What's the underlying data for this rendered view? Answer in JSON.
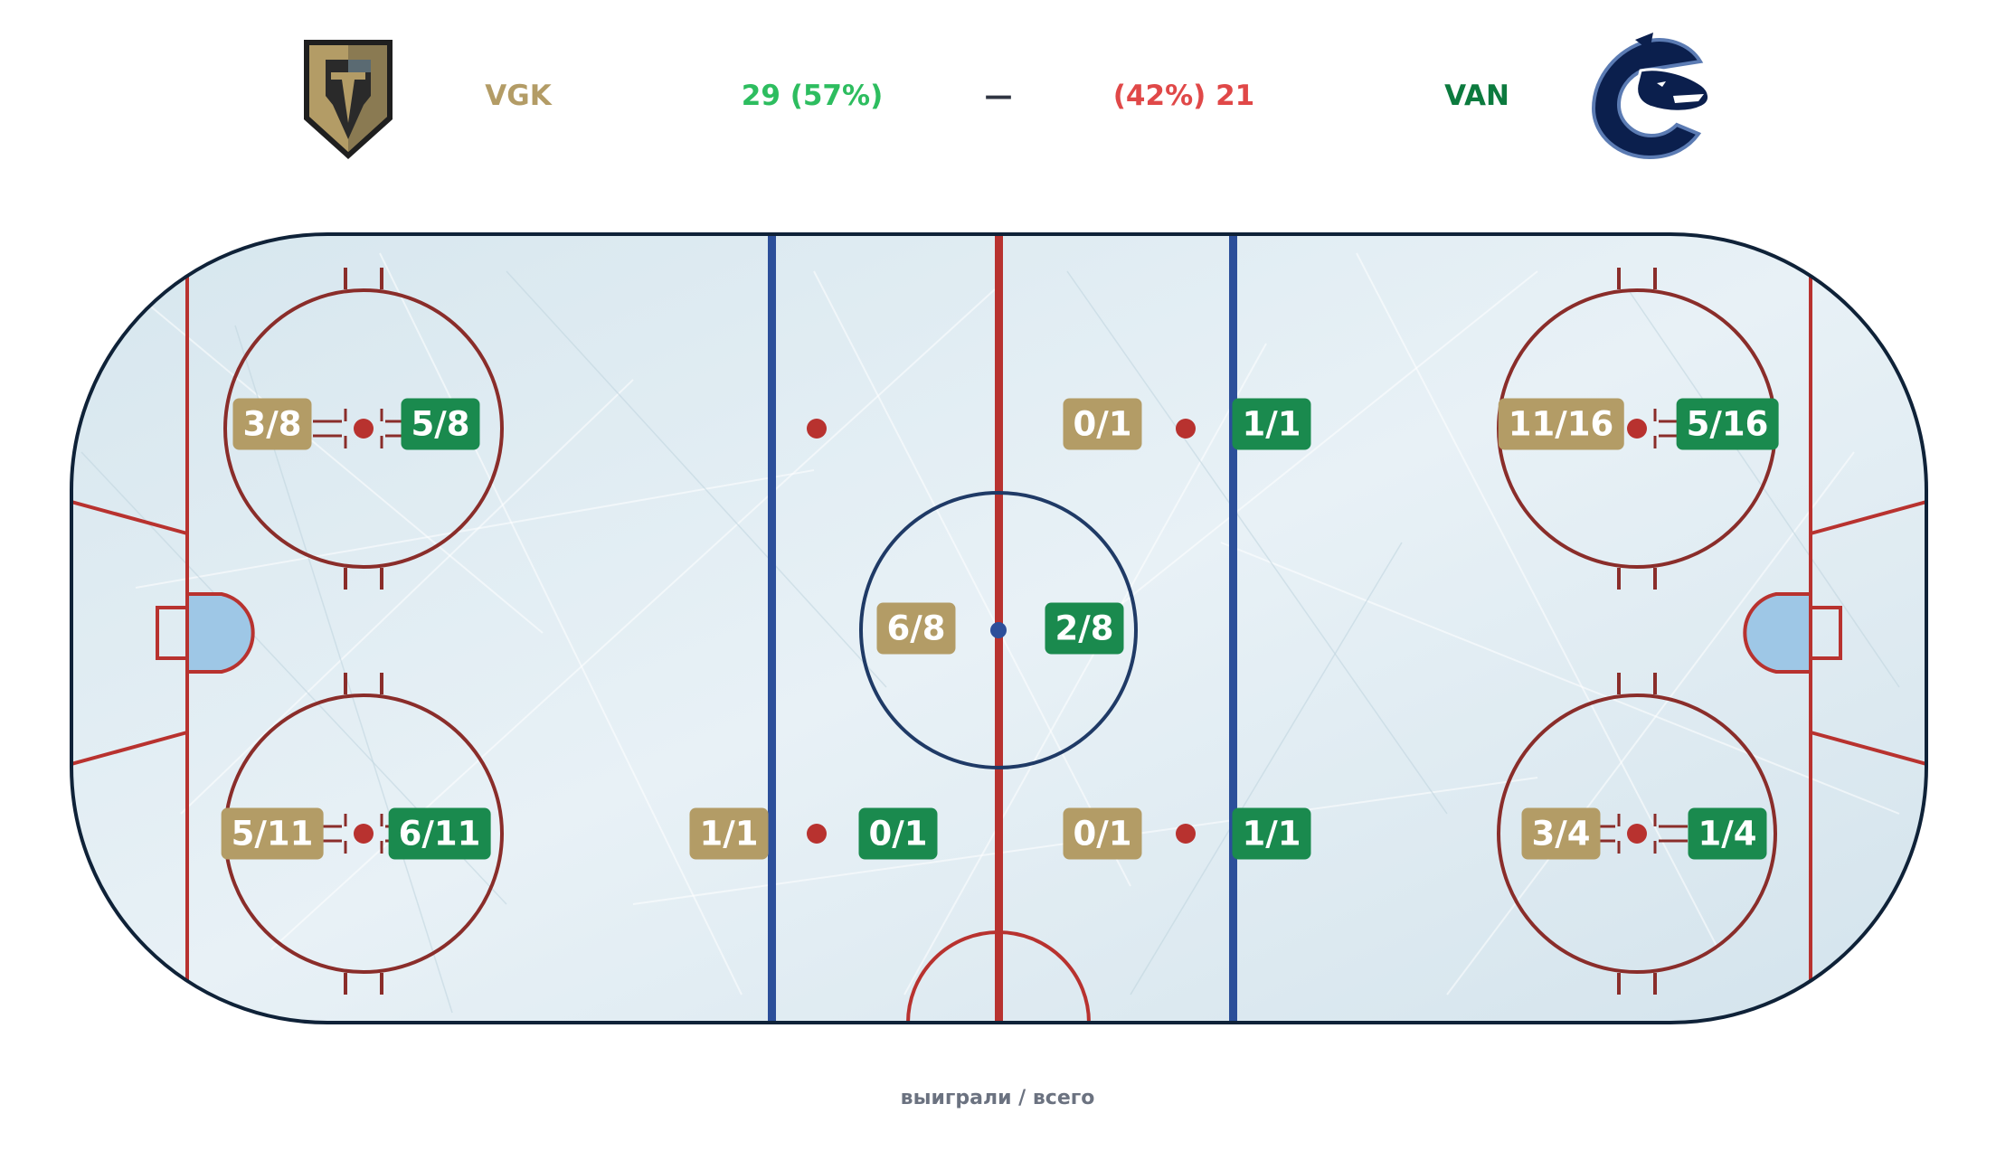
{
  "header": {
    "home_abbr": "VGK",
    "home_score": "29 (57%)",
    "separator": "—",
    "away_score": "(42%) 21",
    "away_abbr": "VAN",
    "home_logo_icon": "vegas-golden-knights-helmet-logo",
    "away_logo_icon": "vancouver-canucks-orca-logo"
  },
  "colors": {
    "home": "#b39c66",
    "away": "#1a8a4e",
    "home_score": "#2dbd5f",
    "away_score": "#e04848",
    "away_abbr": "#0c7a3e",
    "rink_red": "#b8322f",
    "rink_blue": "#2c4f9a"
  },
  "dots": {
    "left_top": {
      "home": "3/8",
      "away": "5/8"
    },
    "left_bot": {
      "home": "5/11",
      "away": "6/11"
    },
    "nz_left_top": {
      "home": "",
      "away": ""
    },
    "nz_left_bot": {
      "home": "1/1",
      "away": "0/1"
    },
    "center": {
      "home": "6/8",
      "away": "2/8"
    },
    "nz_right_top": {
      "home": "0/1",
      "away": "1/1"
    },
    "nz_right_bot": {
      "home": "0/1",
      "away": "1/1"
    },
    "right_top": {
      "home": "11/16",
      "away": "5/16"
    },
    "right_bot": {
      "home": "3/4",
      "away": "1/4"
    }
  },
  "footer": "выиграли / всего"
}
